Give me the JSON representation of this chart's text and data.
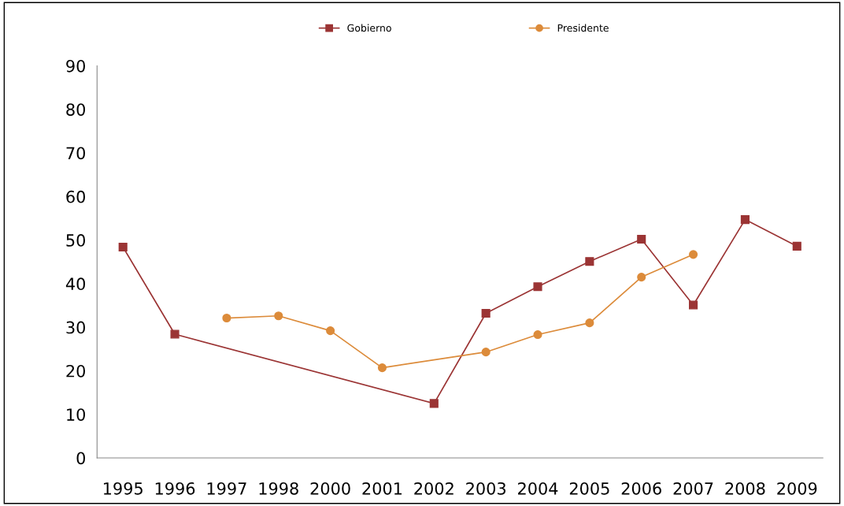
{
  "chart_data": {
    "type": "line",
    "categories": [
      "1995",
      "1996",
      "1997",
      "1998",
      "2000",
      "2001",
      "2002",
      "2003",
      "2004",
      "2005",
      "2006",
      "2007",
      "2008",
      "2009"
    ],
    "series": [
      {
        "name": "Gobierno",
        "color": "#9b3434",
        "marker": "square",
        "values": [
          48.4,
          28.4,
          null,
          null,
          null,
          null,
          12.5,
          33.2,
          39.3,
          45.1,
          50.2,
          35.1,
          54.7,
          48.6
        ]
      },
      {
        "name": "Presidente",
        "color": "#dc8b3a",
        "marker": "circle",
        "values": [
          null,
          null,
          32.1,
          32.6,
          29.2,
          20.7,
          null,
          24.3,
          28.3,
          31.0,
          41.5,
          46.7,
          null,
          null
        ]
      }
    ],
    "ylim": [
      0,
      90
    ],
    "yticks": [
      0,
      10,
      20,
      30,
      40,
      50,
      60,
      70,
      80,
      90
    ],
    "grid": false,
    "legend": "top"
  }
}
